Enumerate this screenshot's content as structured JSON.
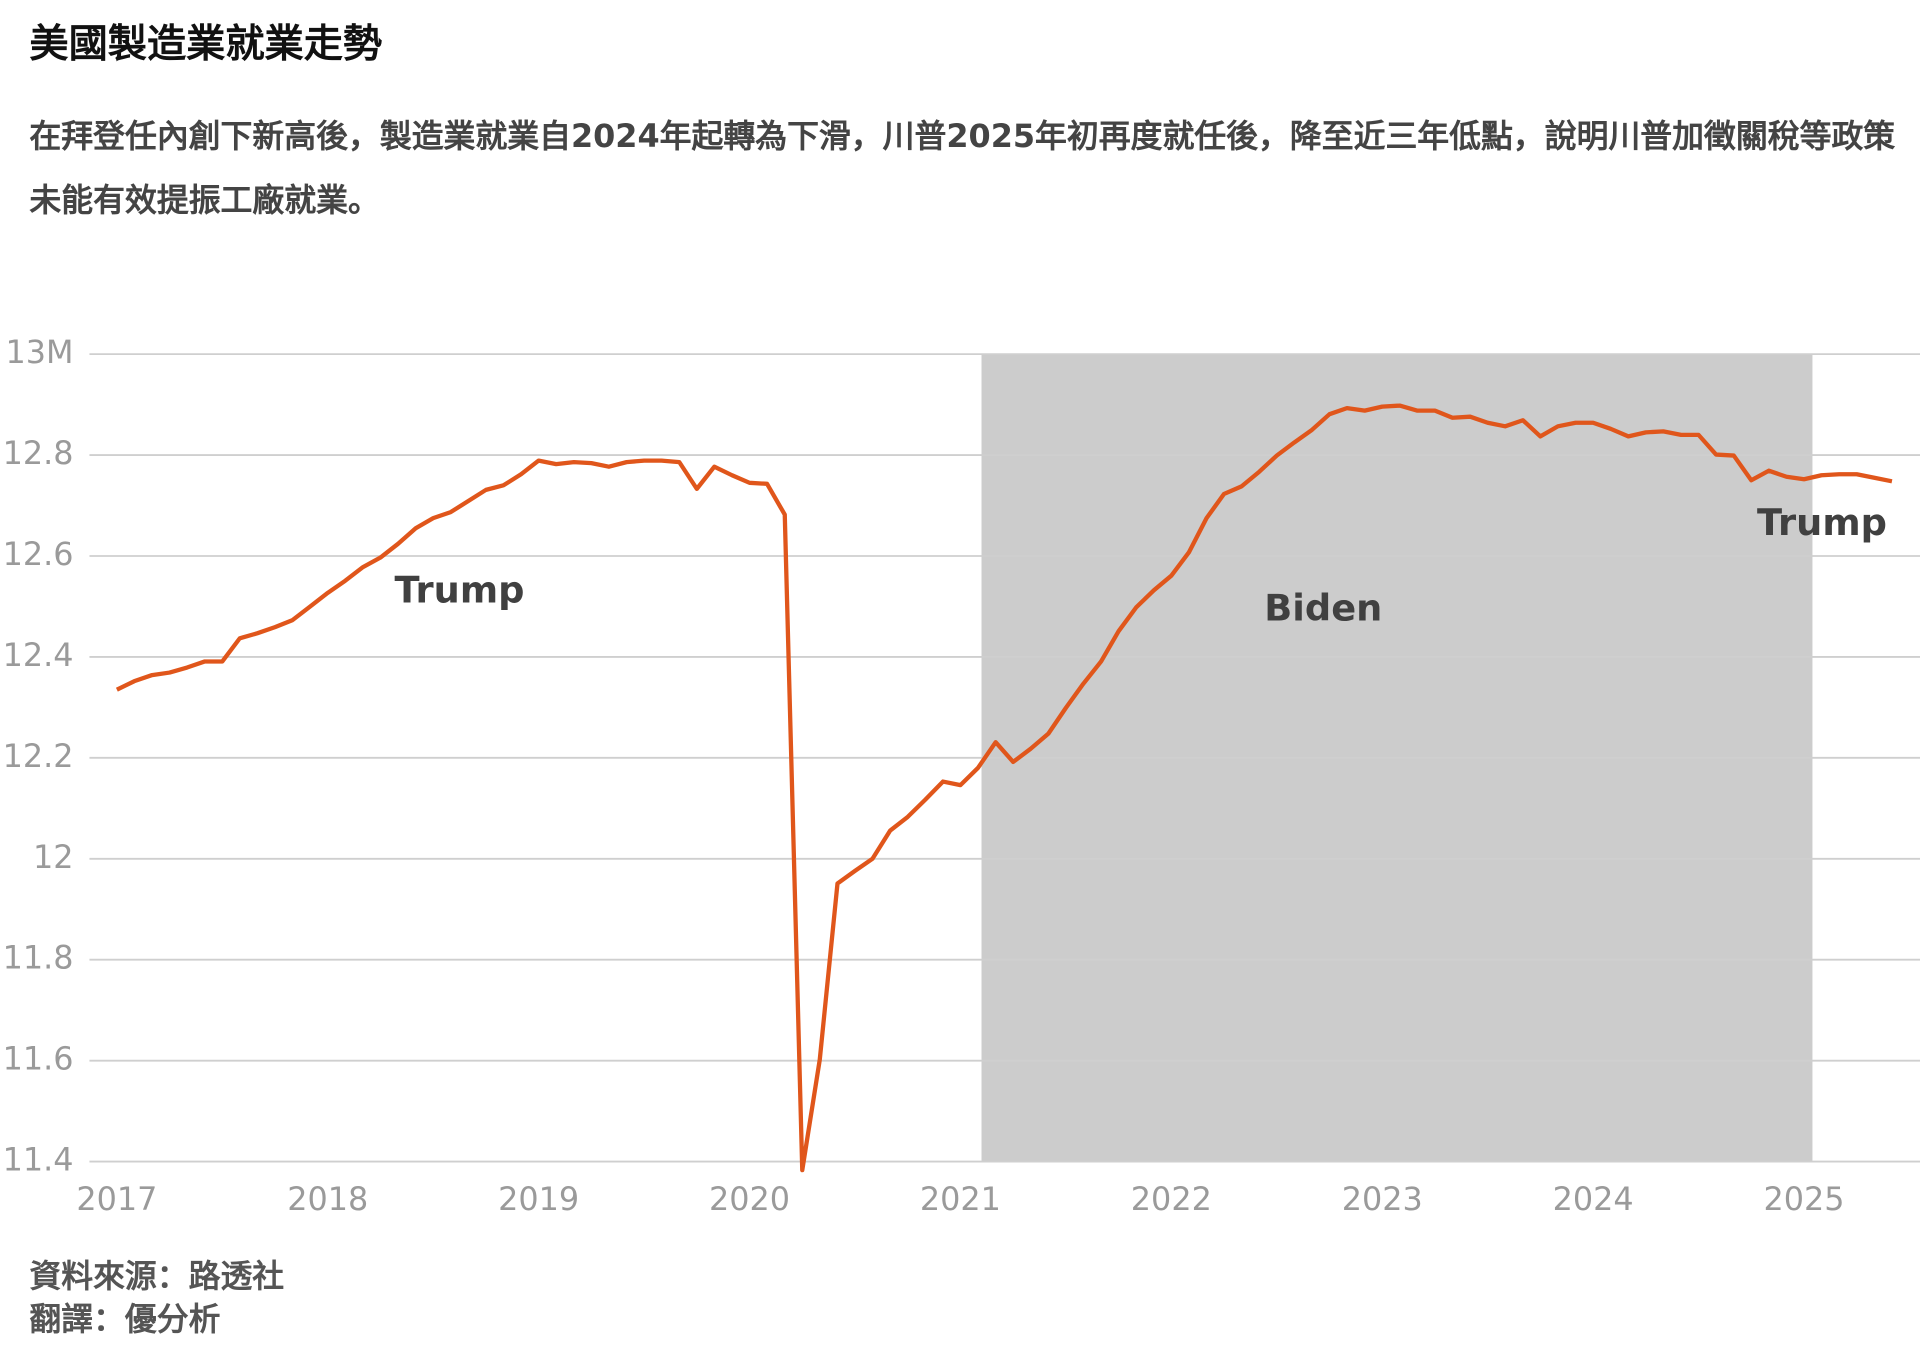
{
  "chart_data": {
    "type": "line",
    "title": "美國製造業就業走勢",
    "subtitle": "在拜登任內創下新高後，製造業就業自2024年起轉為下滑，川普2025年初再度就任後，降至近三年低點，說明川普加徵關稅等政策未能有效提振工廠就業。",
    "source": "資料來源：路透社",
    "translation": "翻譯：優分析",
    "annotations": [
      "Trump",
      "Biden",
      "Trump"
    ],
    "color": "#e0561b",
    "shade": {
      "from": 2021.1,
      "to": 2025.04,
      "color": "#cccccc"
    },
    "grid": true,
    "xlim": [
      2016.87,
      2025.55
    ],
    "xticks": [
      2017,
      2018,
      2019,
      2020,
      2021,
      2022,
      2023,
      2024,
      2025
    ],
    "ylim": [
      11.4,
      13
    ],
    "yticks": [
      11.4,
      11.6,
      11.8,
      12,
      12.2,
      12.4,
      12.6,
      12.8,
      {
        "value": 13,
        "label": "13M"
      }
    ],
    "x": [
      2017,
      2017.083,
      2017.167,
      2017.25,
      2017.333,
      2017.417,
      2017.5,
      2017.583,
      2017.667,
      2017.75,
      2017.833,
      2017.917,
      2018,
      2018.083,
      2018.167,
      2018.25,
      2018.333,
      2018.417,
      2018.5,
      2018.583,
      2018.667,
      2018.75,
      2018.833,
      2018.917,
      2019,
      2019.083,
      2019.167,
      2019.25,
      2019.333,
      2019.417,
      2019.5,
      2019.583,
      2019.667,
      2019.75,
      2019.833,
      2019.917,
      2020,
      2020.083,
      2020.167,
      2020.25,
      2020.333,
      2020.417,
      2020.5,
      2020.583,
      2020.667,
      2020.75,
      2020.833,
      2020.917,
      2021,
      2021.083,
      2021.167,
      2021.25,
      2021.333,
      2021.417,
      2021.5,
      2021.583,
      2021.667,
      2021.75,
      2021.833,
      2021.917,
      2022,
      2022.083,
      2022.167,
      2022.25,
      2022.333,
      2022.417,
      2022.5,
      2022.583,
      2022.667,
      2022.75,
      2022.833,
      2022.917,
      2023,
      2023.083,
      2023.167,
      2023.25,
      2023.333,
      2023.417,
      2023.5,
      2023.583,
      2023.667,
      2023.75,
      2023.833,
      2023.917,
      2024,
      2024.083,
      2024.167,
      2024.25,
      2024.333,
      2024.417,
      2024.5,
      2024.583,
      2024.667,
      2024.75,
      2024.833,
      2024.917,
      2025,
      2025.083,
      2025.167,
      2025.25,
      2025.333,
      2025.417
    ],
    "values": [
      12.335,
      12.352,
      12.364,
      12.369,
      12.379,
      12.391,
      12.391,
      12.437,
      12.447,
      12.459,
      12.473,
      12.5,
      12.527,
      12.551,
      12.578,
      12.597,
      12.624,
      12.655,
      12.675,
      12.687,
      12.709,
      12.731,
      12.74,
      12.762,
      12.789,
      12.782,
      12.786,
      12.784,
      12.777,
      12.786,
      12.789,
      12.789,
      12.786,
      12.733,
      12.777,
      12.76,
      12.745,
      12.743,
      12.682,
      11.383,
      11.602,
      11.951,
      11.976,
      12.0,
      12.056,
      12.083,
      12.117,
      12.153,
      12.146,
      12.18,
      12.231,
      12.192,
      12.218,
      12.248,
      12.299,
      12.347,
      12.391,
      12.451,
      12.498,
      12.532,
      12.561,
      12.607,
      12.675,
      12.723,
      12.738,
      12.767,
      12.799,
      12.825,
      12.85,
      12.881,
      12.893,
      12.888,
      12.896,
      12.898,
      12.888,
      12.888,
      12.874,
      12.876,
      12.864,
      12.857,
      12.869,
      12.837,
      12.857,
      12.864,
      12.864,
      12.852,
      12.837,
      12.845,
      12.847,
      12.84,
      12.84,
      12.801,
      12.799,
      12.75,
      12.769,
      12.757,
      12.752,
      12.76,
      12.762,
      12.762,
      12.755,
      12.748
    ]
  }
}
